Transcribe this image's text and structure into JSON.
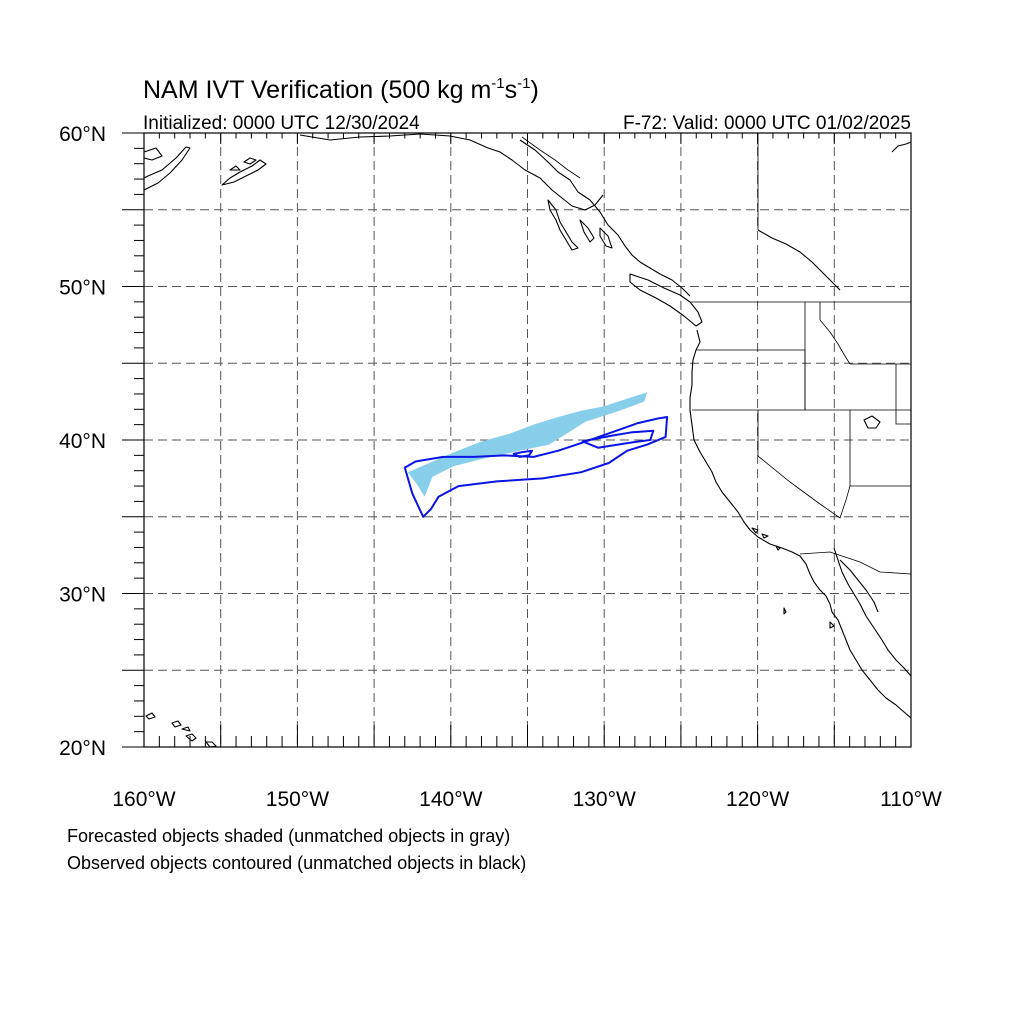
{
  "title": {
    "main": "NAM IVT Verification (500 kg m",
    "sup1": "-1",
    "mid": "s",
    "sup2": "-1",
    "end": ")"
  },
  "initialized": "Initialized: 0000 UTC 12/30/2024",
  "valid": "F-72: Valid: 0000 UTC 01/02/2025",
  "lat_labels": [
    "20°N",
    "30°N",
    "40°N",
    "50°N",
    "60°N"
  ],
  "lon_labels": [
    "160°W",
    "150°W",
    "140°W",
    "130°W",
    "120°W",
    "110°W"
  ],
  "footnotes": [
    "Forecasted objects shaded (unmatched objects in gray)",
    "Observed objects contoured (unmatched objects in black)"
  ],
  "map_extent": {
    "lon_min": -160,
    "lon_max": -110,
    "lat_min": 20,
    "lat_max": 60
  },
  "colors": {
    "forecast_fill": "#87ceeb",
    "observed_contour": "#0a14e6",
    "coastline": "#000000",
    "grid": "#555555"
  },
  "forecast_object": {
    "matched": true,
    "polygon_lonlat": [
      [
        -142.8,
        37.9
      ],
      [
        -141.4,
        38.5
      ],
      [
        -139.8,
        39.2
      ],
      [
        -138.0,
        39.9
      ],
      [
        -136.2,
        40.4
      ],
      [
        -134.6,
        41.0
      ],
      [
        -133.0,
        41.5
      ],
      [
        -131.5,
        41.9
      ],
      [
        -130.0,
        42.2
      ],
      [
        -128.5,
        42.7
      ],
      [
        -127.2,
        43.1
      ],
      [
        -127.4,
        42.5
      ],
      [
        -129.0,
        41.9
      ],
      [
        -131.2,
        41.2
      ],
      [
        -133.6,
        39.7
      ],
      [
        -135.5,
        39.3
      ],
      [
        -137.8,
        38.8
      ],
      [
        -139.8,
        38.3
      ],
      [
        -141.2,
        37.6
      ],
      [
        -141.7,
        36.3
      ],
      [
        -142.2,
        37.1
      ]
    ]
  },
  "observed_object": {
    "matched": true,
    "outer_lonlat": [
      [
        -143.0,
        38.2
      ],
      [
        -142.5,
        36.5
      ],
      [
        -141.8,
        35.0
      ],
      [
        -141.3,
        35.5
      ],
      [
        -140.8,
        36.3
      ],
      [
        -139.5,
        37.0
      ],
      [
        -137.0,
        37.3
      ],
      [
        -134.0,
        37.5
      ],
      [
        -131.5,
        37.9
      ],
      [
        -129.7,
        38.5
      ],
      [
        -128.5,
        39.3
      ],
      [
        -127.2,
        39.7
      ],
      [
        -126.0,
        40.2
      ],
      [
        -125.9,
        41.5
      ],
      [
        -126.5,
        41.4
      ],
      [
        -127.8,
        41.1
      ],
      [
        -129.5,
        40.5
      ],
      [
        -131.5,
        39.8
      ],
      [
        -133.0,
        39.3
      ],
      [
        -134.6,
        38.9
      ],
      [
        -136.5,
        39.0
      ],
      [
        -138.5,
        38.9
      ],
      [
        -140.5,
        38.9
      ],
      [
        -142.3,
        38.6
      ]
    ],
    "inner_lonlat": [
      [
        -130.4,
        39.5
      ],
      [
        -128.5,
        39.8
      ],
      [
        -127.0,
        40.0
      ],
      [
        -126.8,
        40.6
      ],
      [
        -128.2,
        40.5
      ],
      [
        -129.4,
        40.3
      ],
      [
        -131.0,
        40.0
      ],
      [
        -131.4,
        39.9
      ]
    ],
    "blob_lonlat": [
      [
        -135.5,
        38.9
      ],
      [
        -134.9,
        39.0
      ],
      [
        -134.7,
        39.3
      ],
      [
        -135.4,
        39.2
      ],
      [
        -135.9,
        39.1
      ]
    ]
  }
}
